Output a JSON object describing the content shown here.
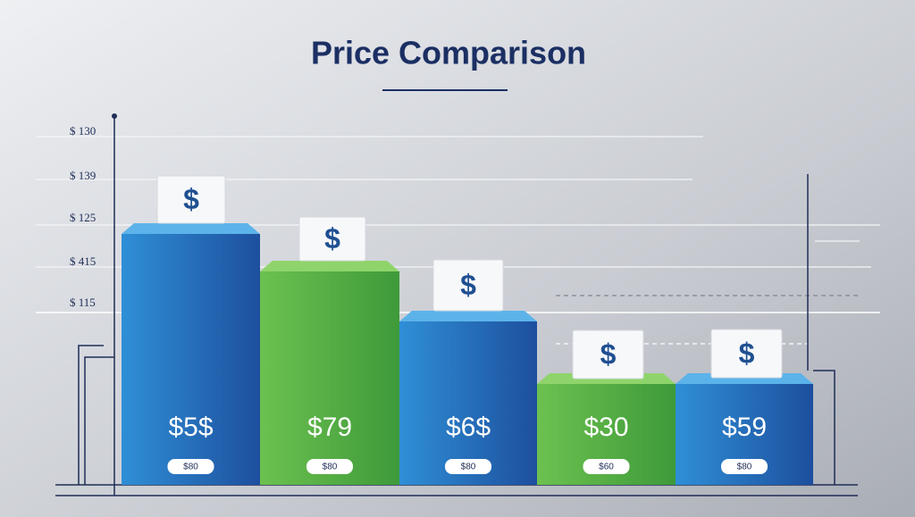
{
  "title": "Price Comparison",
  "axis_labels": [
    "$ 130",
    "$ 139",
    "$ 125",
    "$ 415",
    "$ 115"
  ],
  "bars": [
    {
      "icon": "$",
      "price": "$5$",
      "badge": "$80"
    },
    {
      "icon": "$",
      "price": "$79",
      "badge": "$80"
    },
    {
      "icon": "$",
      "price": "$6$",
      "badge": "$80"
    },
    {
      "icon": "$",
      "price": "$30",
      "badge": "$60"
    },
    {
      "icon": "$",
      "price": "$59",
      "badge": "$80"
    }
  ]
}
